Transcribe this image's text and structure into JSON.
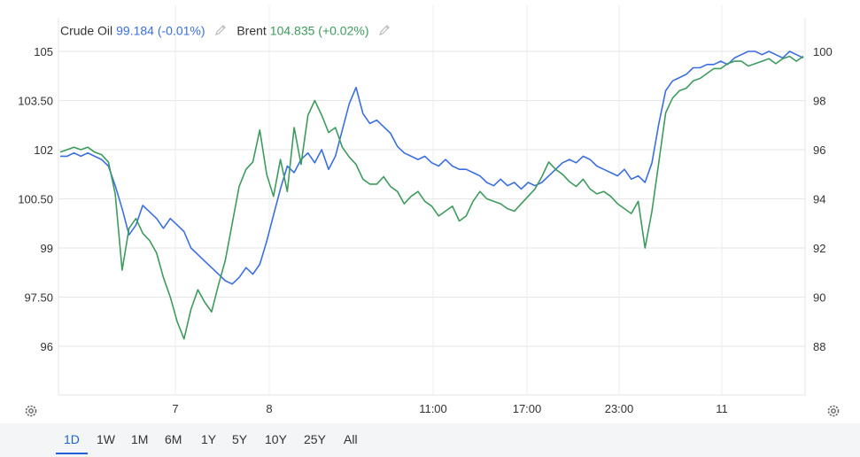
{
  "legend": {
    "series1": {
      "name": "Crude Oil",
      "value": "99.184 (-0.01%)",
      "color": "#3b6fe0"
    },
    "series2": {
      "name": "Brent",
      "value": "104.835 (+0.02%)",
      "color": "#3e9b5e"
    }
  },
  "range_buttons": [
    "1D",
    "1W",
    "1M",
    "6M",
    "1Y",
    "5Y",
    "10Y",
    "25Y",
    "All"
  ],
  "active_range": "1D",
  "icons": {
    "settings_left": "gear-icon",
    "settings_right": "gear-icon",
    "edit": "pencil-icon"
  },
  "chart_data": {
    "type": "line",
    "x_tick_labels": [
      "7",
      "8",
      "11:00",
      "17:00",
      "23:00",
      "11"
    ],
    "left_axis": {
      "ticks": [
        "105",
        "103.50",
        "102",
        "100.50",
        "99",
        "97.50",
        "96"
      ],
      "ylim": [
        94.5,
        105.3
      ]
    },
    "right_axis": {
      "ticks": [
        "100",
        "98",
        "96",
        "94",
        "92",
        "90",
        "88"
      ],
      "ylim": [
        86.0,
        100.1
      ]
    },
    "grid": true,
    "series": [
      {
        "name": "Crude Oil",
        "axis": "left",
        "color": "#3b6fe0",
        "values": [
          101.8,
          101.8,
          101.9,
          101.8,
          101.9,
          101.8,
          101.7,
          101.5,
          100.9,
          100.2,
          99.4,
          99.7,
          100.3,
          100.1,
          99.9,
          99.6,
          99.9,
          99.7,
          99.5,
          99.0,
          98.8,
          98.6,
          98.4,
          98.2,
          98.0,
          97.9,
          98.1,
          98.4,
          98.2,
          98.5,
          99.2,
          100.0,
          100.8,
          101.5,
          101.3,
          101.7,
          101.9,
          101.6,
          102.0,
          101.4,
          101.8,
          102.6,
          103.4,
          103.9,
          103.1,
          102.8,
          102.9,
          102.7,
          102.5,
          102.1,
          101.9,
          101.8,
          101.7,
          101.8,
          101.6,
          101.5,
          101.7,
          101.5,
          101.4,
          101.4,
          101.3,
          101.2,
          101.0,
          100.9,
          101.1,
          100.9,
          101.0,
          100.8,
          101.0,
          100.9,
          101.0,
          101.2,
          101.4,
          101.6,
          101.7,
          101.6,
          101.8,
          101.7,
          101.5,
          101.4,
          101.3,
          101.2,
          101.4,
          101.1,
          101.2,
          101.0,
          101.6,
          102.8,
          103.8,
          104.1,
          104.2,
          104.3,
          104.5,
          104.5,
          104.6,
          104.6,
          104.7,
          104.6,
          104.8,
          104.9,
          105.0,
          105.0,
          104.9,
          105.0,
          104.9,
          104.8,
          105.0,
          104.9,
          104.8
        ]
      },
      {
        "name": "Brent",
        "axis": "right",
        "color": "#3e9b5e",
        "values": [
          95.9,
          96.0,
          96.1,
          96.0,
          96.1,
          95.9,
          95.8,
          95.5,
          94.2,
          91.1,
          92.8,
          93.2,
          92.6,
          92.3,
          91.8,
          90.8,
          90.0,
          89.0,
          88.3,
          89.5,
          90.3,
          89.8,
          89.4,
          90.5,
          91.5,
          93.0,
          94.5,
          95.2,
          95.5,
          96.8,
          95.0,
          94.1,
          95.6,
          94.3,
          96.9,
          95.4,
          97.4,
          98.0,
          97.4,
          96.7,
          96.9,
          96.1,
          95.7,
          95.4,
          94.8,
          94.6,
          94.6,
          94.9,
          94.5,
          94.3,
          93.8,
          94.1,
          94.3,
          93.9,
          93.7,
          93.3,
          93.5,
          93.7,
          93.1,
          93.3,
          93.9,
          94.3,
          94.0,
          93.9,
          93.8,
          93.6,
          93.5,
          93.8,
          94.1,
          94.4,
          94.9,
          95.5,
          95.2,
          95.0,
          94.7,
          94.5,
          94.8,
          94.4,
          94.2,
          94.3,
          94.1,
          93.8,
          93.6,
          93.4,
          93.9,
          92.0,
          93.5,
          95.5,
          97.5,
          98.1,
          98.4,
          98.5,
          98.8,
          98.9,
          99.1,
          99.3,
          99.3,
          99.5,
          99.6,
          99.6,
          99.4,
          99.5,
          99.6,
          99.7,
          99.5,
          99.7,
          99.8,
          99.6,
          99.8
        ]
      }
    ]
  }
}
